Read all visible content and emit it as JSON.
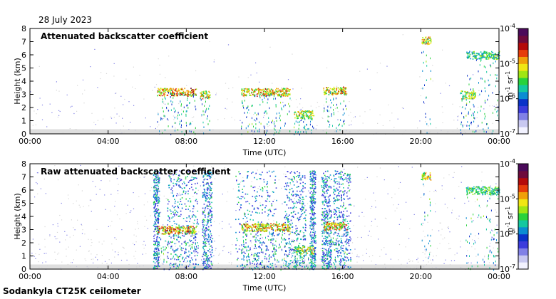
{
  "date": "28 July 2023",
  "footer": "Sodankyla CT25K ceilometer",
  "colors": {
    "background_noise": "#d6d6d6",
    "colormap": [
      "#f2f2ff",
      "#c8c8f0",
      "#8080e6",
      "#3c3cdc",
      "#0a32c8",
      "#0a8cd2",
      "#14c8a0",
      "#28d23c",
      "#a0e614",
      "#f0e614",
      "#f0a00a",
      "#e63c0a",
      "#b40a0a",
      "#6e0a3c",
      "#4b0a5a"
    ]
  },
  "chart_data": [
    {
      "type": "heatmap",
      "title": "Attenuated backscatter coefficient",
      "xlabel": "Time (UTC)",
      "ylabel": "Height (km)",
      "xlim": [
        0,
        24
      ],
      "ylim": [
        0,
        8
      ],
      "xticks": [
        "00:00",
        "04:00",
        "08:00",
        "12:00",
        "16:00",
        "20:00",
        "00:00"
      ],
      "yticks": [
        "0",
        "1",
        "2",
        "3",
        "4",
        "5",
        "6",
        "7",
        "8"
      ],
      "colorbar": {
        "label": "m-1 sr-1",
        "scale": "log",
        "range": [
          1e-07,
          0.0001
        ],
        "ticks": [
          "10-7",
          "10-6",
          "10-5",
          "10-4"
        ]
      },
      "noise_level": 0.25,
      "features": [
        {
          "label": "aerosol layer",
          "t_start": 6.5,
          "t_end": 8.5,
          "height": 3.2,
          "intensity": 0.9
        },
        {
          "label": "aerosol layer",
          "t_start": 8.7,
          "t_end": 9.2,
          "height": 3.0,
          "intensity": 0.8
        },
        {
          "label": "aerosol layer",
          "t_start": 10.8,
          "t_end": 13.3,
          "height": 3.2,
          "intensity": 0.85
        },
        {
          "label": "aerosol layer",
          "t_start": 15.0,
          "t_end": 16.2,
          "height": 3.3,
          "intensity": 0.85
        },
        {
          "label": "low cloud",
          "t_start": 13.5,
          "t_end": 14.5,
          "height": 1.5,
          "intensity": 0.75
        },
        {
          "label": "cirrus",
          "t_start": 20.0,
          "t_end": 20.5,
          "height": 7.1,
          "intensity": 0.8
        },
        {
          "label": "cirrus",
          "t_start": 22.3,
          "t_end": 24.0,
          "height": 6.0,
          "intensity": 0.6
        },
        {
          "label": "mid cloud",
          "t_start": 22.0,
          "t_end": 22.8,
          "height": 3.0,
          "intensity": 0.7
        }
      ]
    },
    {
      "type": "heatmap",
      "title": "Raw attenuated backscatter coefficient",
      "xlabel": "Time (UTC)",
      "ylabel": "Height (km)",
      "xlim": [
        0,
        24
      ],
      "ylim": [
        0,
        8
      ],
      "xticks": [
        "00:00",
        "04:00",
        "08:00",
        "12:00",
        "16:00",
        "20:00",
        "00:00"
      ],
      "yticks": [
        "0",
        "1",
        "2",
        "3",
        "4",
        "5",
        "6",
        "7",
        "8"
      ],
      "colorbar": {
        "label": "m-1 sr-1",
        "scale": "log",
        "range": [
          1e-07,
          0.0001
        ],
        "ticks": [
          "10-7",
          "10-6",
          "10-5",
          "10-4"
        ]
      },
      "noise_level": 0.6,
      "features": [
        {
          "label": "aerosol layer",
          "t_start": 6.5,
          "t_end": 8.5,
          "height": 3.0,
          "intensity": 0.9
        },
        {
          "label": "aerosol layer",
          "t_start": 10.8,
          "t_end": 13.3,
          "height": 3.2,
          "intensity": 0.85
        },
        {
          "label": "aerosol layer",
          "t_start": 15.0,
          "t_end": 16.2,
          "height": 3.3,
          "intensity": 0.85
        },
        {
          "label": "low cloud",
          "t_start": 13.5,
          "t_end": 14.5,
          "height": 1.5,
          "intensity": 0.75
        },
        {
          "label": "cirrus",
          "t_start": 20.0,
          "t_end": 20.5,
          "height": 7.1,
          "intensity": 0.8
        },
        {
          "label": "cirrus",
          "t_start": 22.3,
          "t_end": 24.0,
          "height": 6.0,
          "intensity": 0.6
        }
      ],
      "dense_noise_bands": [
        [
          6.3,
          6.6
        ],
        [
          7.0,
          8.6
        ],
        [
          8.8,
          9.3
        ],
        [
          10.5,
          12.6
        ],
        [
          13.0,
          14.1
        ],
        [
          14.3,
          14.6
        ],
        [
          14.9,
          15.4
        ],
        [
          15.5,
          16.4
        ]
      ]
    }
  ]
}
